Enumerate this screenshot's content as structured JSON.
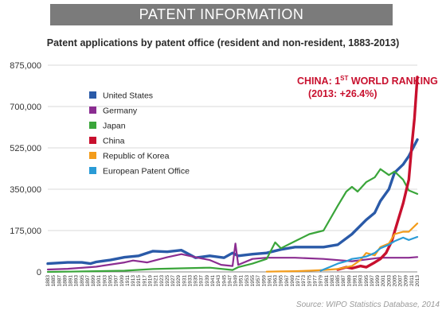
{
  "header": {
    "banner": "PATENT INFORMATION"
  },
  "footer": {
    "source": "Source: WIPO Statistics Database, 2014"
  },
  "chart_data": {
    "type": "line",
    "title": "Patent applications by patent office (resident and non-resident, 1883-2013)",
    "xlabel": "",
    "ylabel": "",
    "xlim": [
      1883,
      2013
    ],
    "ylim": [
      0,
      875000
    ],
    "yticks": [
      0,
      175000,
      350000,
      525000,
      700000,
      875000
    ],
    "ytick_labels": [
      "0",
      "175,000",
      "350,000",
      "525,000",
      "700,000",
      "875,000"
    ],
    "xticks_start": 1883,
    "xticks_end": 2013,
    "xticks_step": 2,
    "grid": "horizontal",
    "legend_position": "left",
    "annotation": {
      "line1_main": "CHINA: 1",
      "line1_sup": "ST",
      "line1_rest": " WORLD RANKING",
      "line2": "(2013: +26.4%)"
    },
    "series": [
      {
        "name": "United States",
        "color": "#2a5aa8",
        "x": [
          1883,
          1890,
          1895,
          1898,
          1900,
          1905,
          1910,
          1915,
          1920,
          1925,
          1930,
          1935,
          1940,
          1945,
          1948,
          1950,
          1955,
          1960,
          1965,
          1970,
          1975,
          1980,
          1985,
          1990,
          1995,
          1998,
          2000,
          2003,
          2005,
          2008,
          2010,
          2013
        ],
        "y": [
          35000,
          40000,
          40000,
          35000,
          42000,
          50000,
          62000,
          68000,
          88000,
          85000,
          92000,
          60000,
          68000,
          60000,
          80000,
          68000,
          75000,
          80000,
          95000,
          105000,
          105000,
          105000,
          115000,
          160000,
          220000,
          250000,
          300000,
          350000,
          420000,
          455000,
          490000,
          560000
        ]
      },
      {
        "name": "Germany",
        "color": "#8b2d91",
        "x": [
          1883,
          1890,
          1900,
          1910,
          1913,
          1918,
          1925,
          1930,
          1935,
          1940,
          1944,
          1948,
          1949,
          1950,
          1955,
          1960,
          1970,
          1980,
          1990,
          2000,
          2005,
          2010,
          2013
        ],
        "y": [
          10000,
          13000,
          22000,
          40000,
          48000,
          40000,
          62000,
          75000,
          62000,
          50000,
          30000,
          25000,
          120000,
          30000,
          55000,
          60000,
          60000,
          55000,
          45000,
          60000,
          60000,
          60000,
          63000
        ]
      },
      {
        "name": "Japan",
        "color": "#3aa53a",
        "x": [
          1883,
          1890,
          1900,
          1910,
          1920,
          1930,
          1940,
          1948,
          1950,
          1955,
          1960,
          1963,
          1965,
          1970,
          1975,
          1980,
          1985,
          1988,
          1990,
          1992,
          1995,
          1998,
          2000,
          2003,
          2005,
          2008,
          2010,
          2013
        ],
        "y": [
          0,
          1000,
          3000,
          5000,
          12000,
          15000,
          18000,
          8000,
          20000,
          35000,
          55000,
          125000,
          100000,
          130000,
          160000,
          175000,
          280000,
          340000,
          360000,
          340000,
          380000,
          400000,
          435000,
          410000,
          425000,
          390000,
          345000,
          330000
        ]
      },
      {
        "name": "China",
        "color": "#c8102e",
        "x": [
          1985,
          1988,
          1990,
          1993,
          1995,
          1998,
          2000,
          2002,
          2004,
          2006,
          2008,
          2010,
          2011,
          2012,
          2013
        ],
        "y": [
          10000,
          20000,
          15000,
          25000,
          20000,
          40000,
          55000,
          80000,
          130000,
          210000,
          290000,
          390000,
          530000,
          650000,
          825000
        ]
      },
      {
        "name": "Republic of Korea",
        "color": "#f39c1b",
        "x": [
          1960,
          1965,
          1970,
          1975,
          1980,
          1985,
          1990,
          1993,
          1995,
          1998,
          2000,
          2003,
          2005,
          2008,
          2010,
          2013
        ],
        "y": [
          1000,
          2000,
          3000,
          5000,
          8000,
          12000,
          25000,
          50000,
          80000,
          70000,
          105000,
          120000,
          160000,
          170000,
          170000,
          205000
        ]
      },
      {
        "name": "European Patent Office",
        "color": "#2a9bd6",
        "x": [
          1979,
          1982,
          1985,
          1988,
          1990,
          1993,
          1995,
          1998,
          2000,
          2003,
          2005,
          2008,
          2010,
          2013
        ],
        "y": [
          5000,
          20000,
          35000,
          45000,
          55000,
          60000,
          65000,
          80000,
          100000,
          115000,
          130000,
          145000,
          135000,
          148000
        ]
      }
    ]
  }
}
